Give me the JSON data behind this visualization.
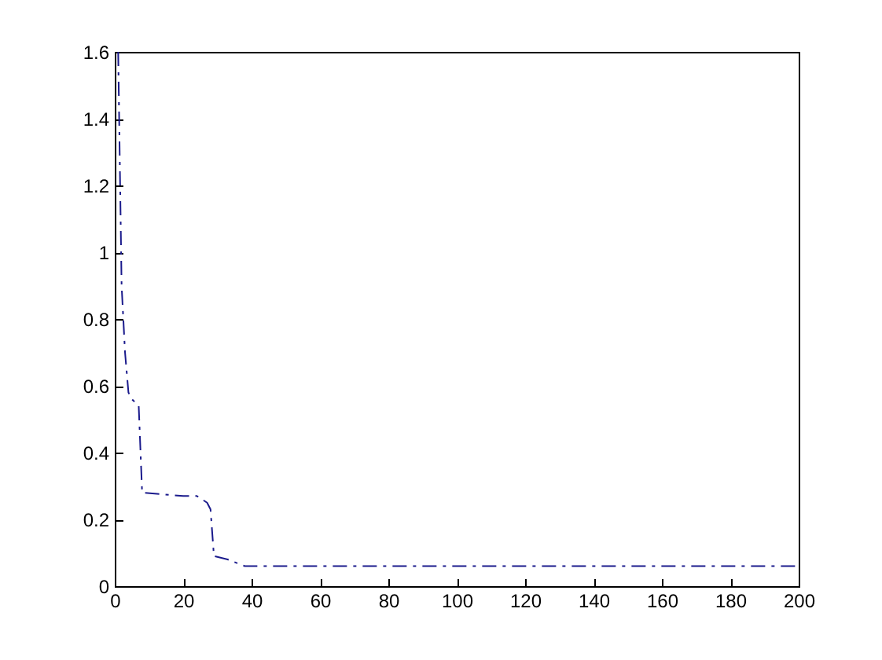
{
  "chart_data": {
    "type": "line",
    "x": [
      1,
      2,
      3,
      4,
      5,
      7,
      8,
      20,
      24,
      27,
      28,
      29,
      33,
      38,
      200
    ],
    "series": [
      {
        "color": "#1a1a8c",
        "values": [
          1.6,
          0.9,
          0.7,
          0.58,
          0.56,
          0.54,
          0.28,
          0.27,
          0.27,
          0.25,
          0.23,
          0.09,
          0.08,
          0.06,
          0.06
        ]
      }
    ],
    "xlim": [
      0,
      200
    ],
    "xticks": [
      0,
      20,
      40,
      60,
      80,
      100,
      120,
      140,
      160,
      180,
      200
    ],
    "ylim": [
      0,
      1.6
    ],
    "yticks": [
      0,
      0.2,
      0.4,
      0.6,
      0.8,
      1,
      1.2,
      1.4,
      1.6
    ],
    "grid": false,
    "legend": false,
    "marker": "none",
    "line_style": "dashdot"
  }
}
